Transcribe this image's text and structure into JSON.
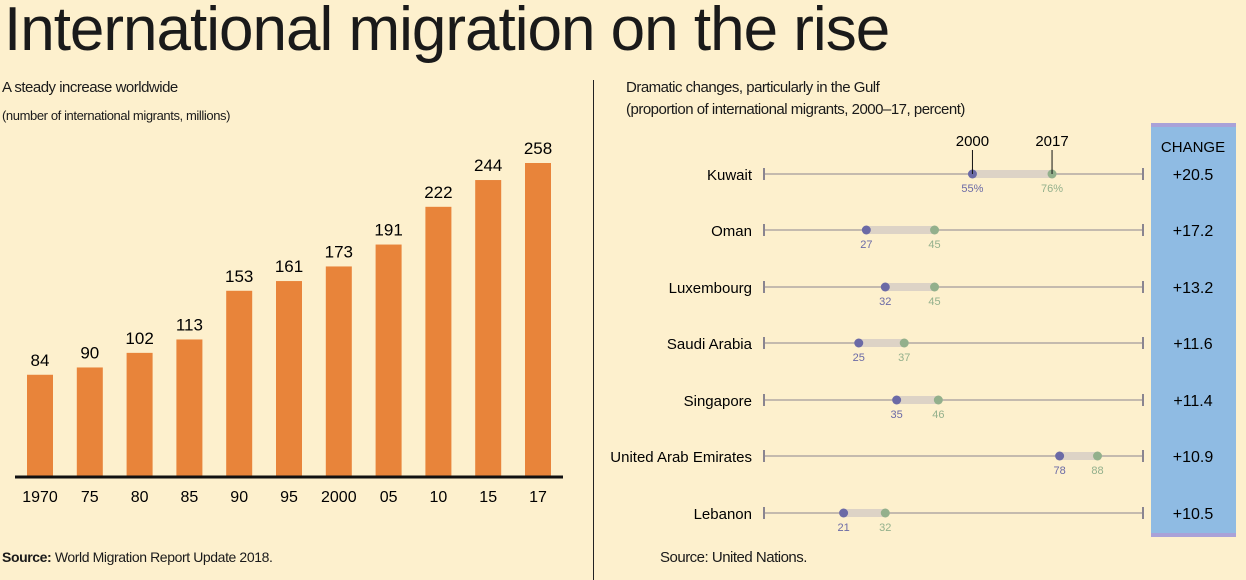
{
  "title": "International migration on the rise",
  "chart_data": [
    {
      "type": "bar",
      "title": "A steady increase worldwide",
      "subtitle": "(number of international migrants, millions)",
      "categories": [
        "1970",
        "75",
        "80",
        "85",
        "90",
        "95",
        "2000",
        "05",
        "10",
        "15",
        "17"
      ],
      "values": [
        84,
        90,
        102,
        113,
        153,
        161,
        173,
        191,
        222,
        244,
        258
      ],
      "ylim": [
        0,
        260
      ],
      "bar_color": "#e8843a",
      "source_label": "Source:",
      "source": "World Migration Report Update 2018."
    },
    {
      "type": "dumbbell",
      "title": "Dramatic changes, particularly in the Gulf",
      "subtitle": "(proportion of international migrants, 2000–17, percent)",
      "series_labels": [
        "2000",
        "2017"
      ],
      "xlim": [
        0,
        100
      ],
      "change_header": "CHANGE",
      "rows": [
        {
          "country": "Kuwait",
          "v2000": 55,
          "v2017": 76,
          "l2000": "55%",
          "l2017": "76%",
          "change": "+20.5"
        },
        {
          "country": "Oman",
          "v2000": 27,
          "v2017": 45,
          "l2000": "27",
          "l2017": "45",
          "change": "+17.2"
        },
        {
          "country": "Luxembourg",
          "v2000": 32,
          "v2017": 45,
          "l2000": "32",
          "l2017": "45",
          "change": "+13.2"
        },
        {
          "country": "Saudi Arabia",
          "v2000": 25,
          "v2017": 37,
          "l2000": "25",
          "l2017": "37",
          "change": "+11.6"
        },
        {
          "country": "Singapore",
          "v2000": 35,
          "v2017": 46,
          "l2000": "35",
          "l2017": "46",
          "change": "+11.4"
        },
        {
          "country": "United Arab Emirates",
          "v2000": 78,
          "v2017": 88,
          "l2000": "78",
          "l2017": "88",
          "change": "+10.9"
        },
        {
          "country": "Lebanon",
          "v2000": 21,
          "v2017": 32,
          "l2000": "21",
          "l2017": "32",
          "change": "+10.5"
        }
      ],
      "colors": {
        "c2000": "#6b6aa6",
        "c2017": "#93b08c",
        "change_panel": "#8fbbe3",
        "panel_border": "#a9a2d8"
      },
      "source": "Source: United Nations."
    }
  ]
}
